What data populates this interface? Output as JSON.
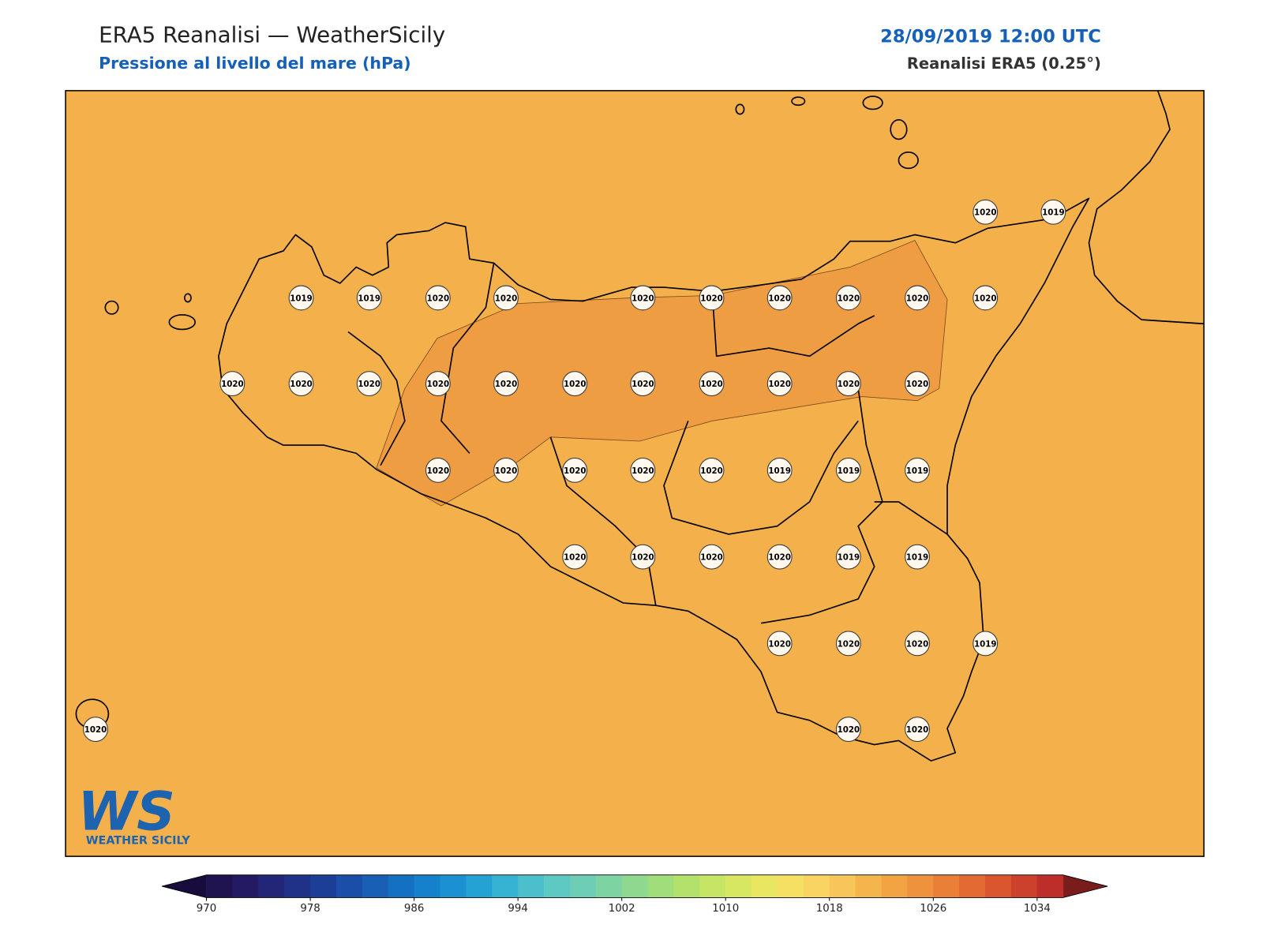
{
  "header": {
    "title": "ERA5 Reanalisi — WeatherSicily",
    "subtitle": "Pressione al livello del mare (hPa)",
    "date": "28/09/2019 12:00 UTC",
    "source": "Reanalisi ERA5 (0.25°)"
  },
  "map": {
    "base_color": "#f4b04a",
    "high_color": "#ef9d42",
    "points": [
      1020,
      1019,
      1019,
      1019,
      1020,
      1020,
      1020,
      1020,
      1020,
      1020,
      1020,
      1020,
      1020,
      1020,
      1020,
      1020,
      1020,
      1020,
      1020,
      1020,
      1020,
      1020,
      1020,
      1020,
      1020,
      1020,
      1020,
      1020,
      1019,
      1019,
      1019,
      1020,
      1020,
      1020,
      1020,
      1019,
      1019,
      1020,
      1020,
      1020,
      1019,
      1020,
      1020,
      1020
    ]
  },
  "logo": {
    "mark": "WS",
    "name": "WEATHER SICILY"
  },
  "colorbar": {
    "ticks": [
      970,
      978,
      986,
      994,
      1002,
      1010,
      1018,
      1026,
      1034
    ],
    "under_color": "#180c3c",
    "over_color": "#7a1c1c",
    "colors": [
      "#1f1450",
      "#231a63",
      "#232677",
      "#1f3288",
      "#1c3e97",
      "#1a4ea8",
      "#1a5fb6",
      "#1470c2",
      "#1580cb",
      "#1c91d1",
      "#24a2d3",
      "#36b3d3",
      "#4cbfcc",
      "#5ec8c2",
      "#6dceb5",
      "#7dd3a2",
      "#8ed98f",
      "#a0de7c",
      "#b3e26c",
      "#c6e564",
      "#d8e762",
      "#e9e661",
      "#f6e064",
      "#fad462",
      "#f8c55a",
      "#f5b54d",
      "#f2a443",
      "#ee923d",
      "#ea7f38",
      "#e36a33",
      "#d9562f",
      "#cc412c",
      "#bd2e2b"
    ]
  }
}
